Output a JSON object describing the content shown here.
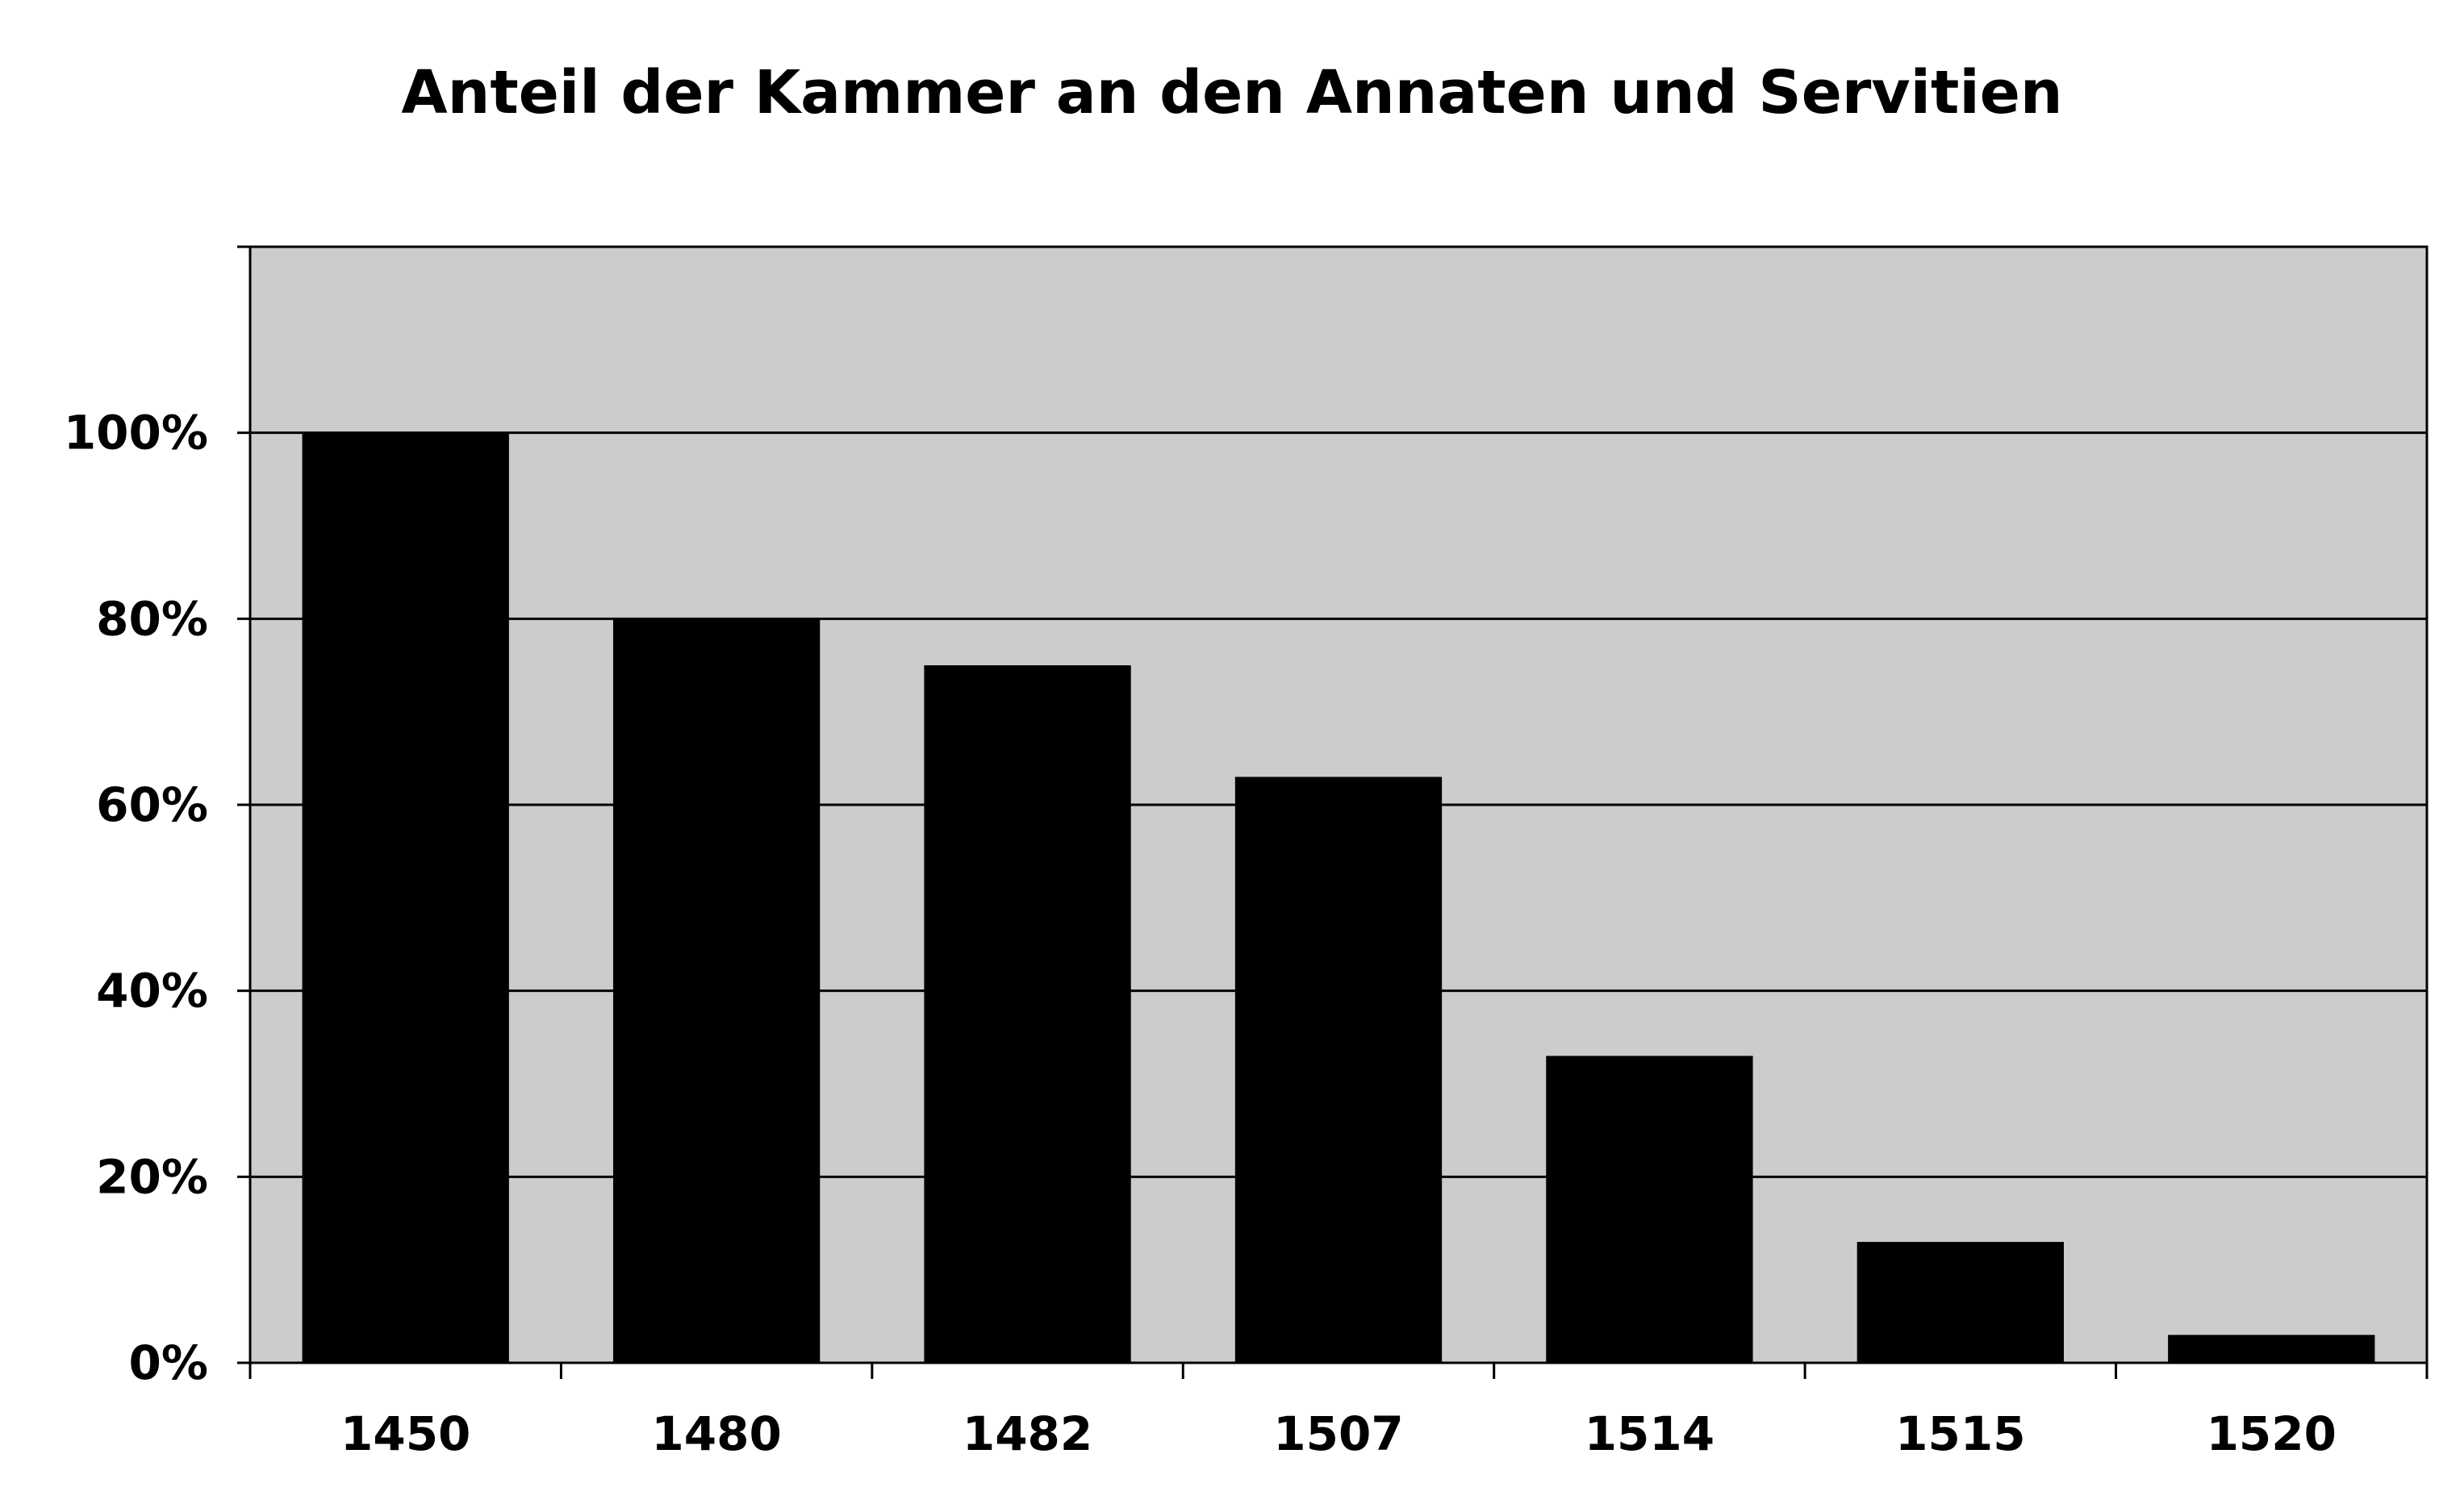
{
  "chart_data": {
    "type": "bar",
    "title": "Anteil der Kammer an den Annaten und Servitien",
    "xlabel": "",
    "ylabel": "",
    "categories": [
      "1450",
      "1480",
      "1482",
      "1507",
      "1514",
      "1515",
      "1520"
    ],
    "values": [
      100,
      80,
      75,
      63,
      33,
      13,
      3
    ],
    "ylim": [
      0,
      120
    ],
    "y_ticks": [
      {
        "value": 0,
        "label": "0%"
      },
      {
        "value": 20,
        "label": "20%"
      },
      {
        "value": 40,
        "label": "40%"
      },
      {
        "value": 60,
        "label": "60%"
      },
      {
        "value": 80,
        "label": "80%"
      },
      {
        "value": 100,
        "label": "100%"
      }
    ],
    "grid": true,
    "legend": "none",
    "colors": {
      "bar": "#000000",
      "plot_background": "#cccccc",
      "gridline": "#000000",
      "axis": "#000000"
    }
  }
}
